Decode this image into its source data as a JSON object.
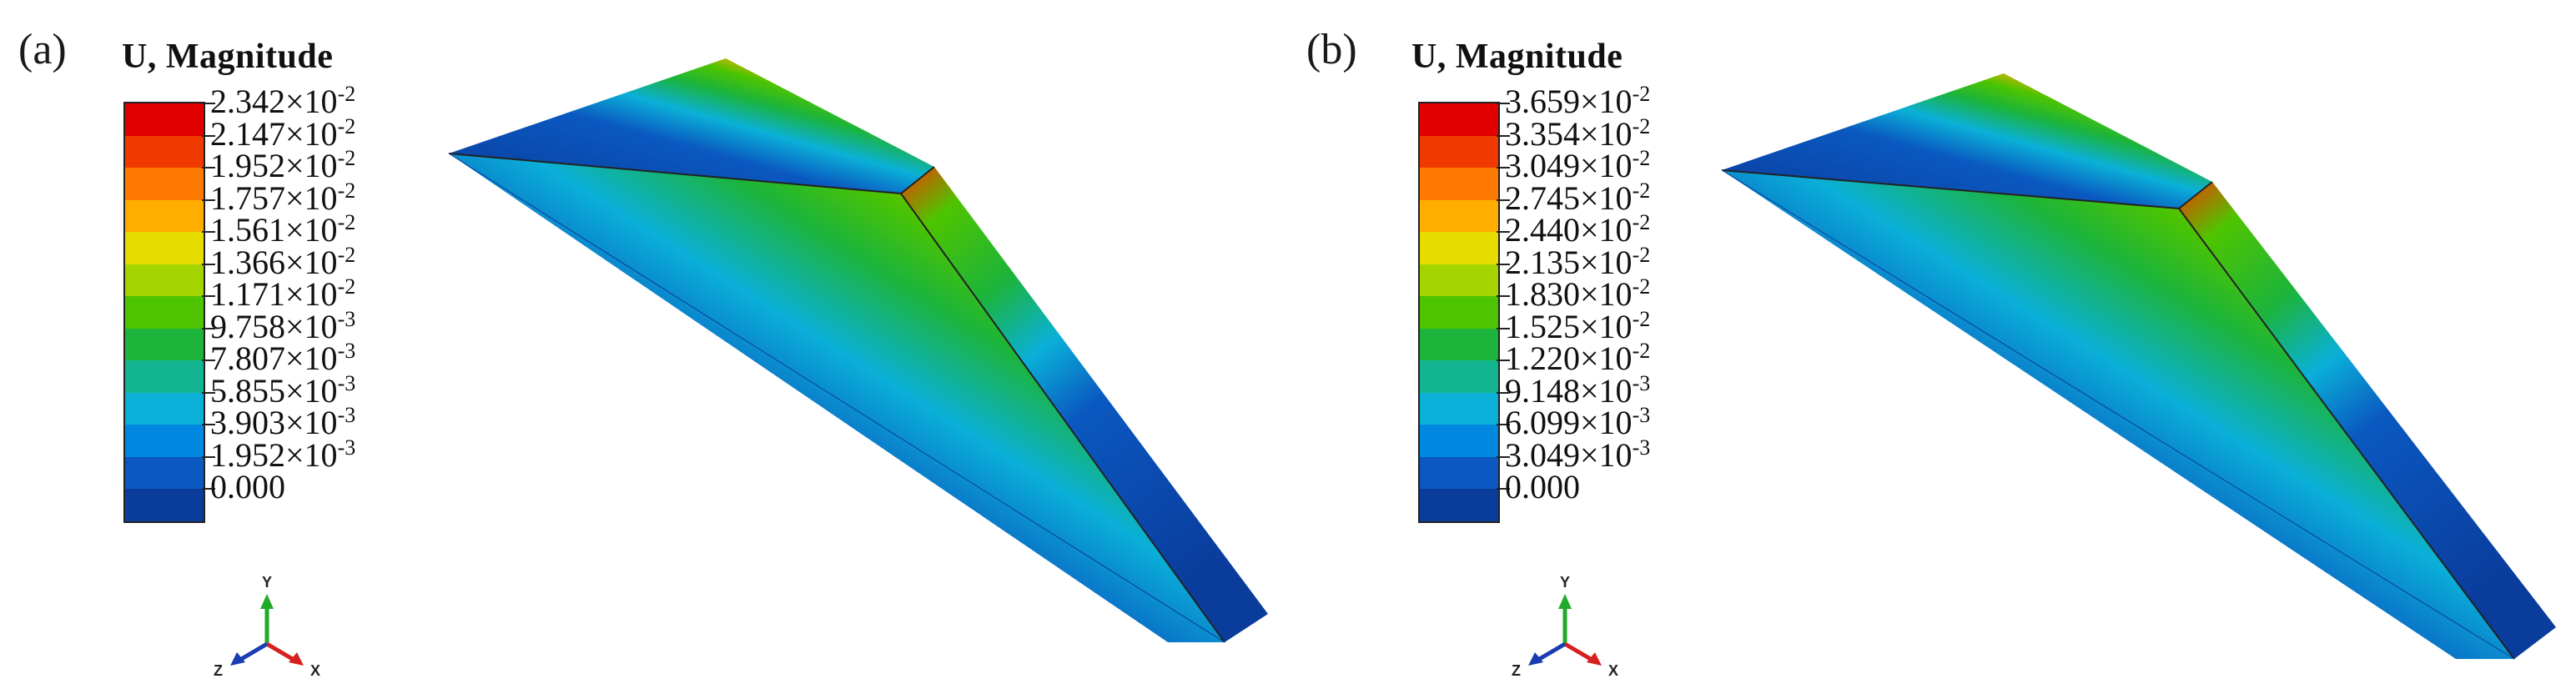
{
  "panels": [
    {
      "id": "a",
      "label": "(a)",
      "legend_title": "U, Magnitude",
      "values": [
        {
          "m": "2.342",
          "e": "-2"
        },
        {
          "m": "2.147",
          "e": "-2"
        },
        {
          "m": "1.952",
          "e": "-2"
        },
        {
          "m": "1.757",
          "e": "-2"
        },
        {
          "m": "1.561",
          "e": "-2"
        },
        {
          "m": "1.366",
          "e": "-2"
        },
        {
          "m": "1.171",
          "e": "-2"
        },
        {
          "m": "9.758",
          "e": "-3"
        },
        {
          "m": "7.807",
          "e": "-3"
        },
        {
          "m": "5.855",
          "e": "-3"
        },
        {
          "m": "3.903",
          "e": "-3"
        },
        {
          "m": "1.952",
          "e": "-3"
        },
        {
          "m": "0.000",
          "e": ""
        }
      ],
      "triad": {
        "y": "Y",
        "x": "X",
        "z": "Z"
      }
    },
    {
      "id": "b",
      "label": "(b)",
      "legend_title": "U, Magnitude",
      "values": [
        {
          "m": "3.659",
          "e": "-2"
        },
        {
          "m": "3.354",
          "e": "-2"
        },
        {
          "m": "3.049",
          "e": "-2"
        },
        {
          "m": "2.745",
          "e": "-2"
        },
        {
          "m": "2.440",
          "e": "-2"
        },
        {
          "m": "2.135",
          "e": "-2"
        },
        {
          "m": "1.830",
          "e": "-2"
        },
        {
          "m": "1.525",
          "e": "-2"
        },
        {
          "m": "1.220",
          "e": "-2"
        },
        {
          "m": "9.148",
          "e": "-3"
        },
        {
          "m": "6.099",
          "e": "-3"
        },
        {
          "m": "3.049",
          "e": "-3"
        },
        {
          "m": "0.000",
          "e": ""
        }
      ],
      "triad": {
        "y": "Y",
        "x": "X",
        "z": "Z"
      }
    }
  ],
  "colormap": [
    "#e00000",
    "#f03a00",
    "#ff7a00",
    "#ffae00",
    "#e6dc00",
    "#a4d400",
    "#4ec400",
    "#1cb43a",
    "#13b590",
    "#0ab0d8",
    "#0088e0",
    "#0a58c0",
    "#0a3c9c"
  ]
}
